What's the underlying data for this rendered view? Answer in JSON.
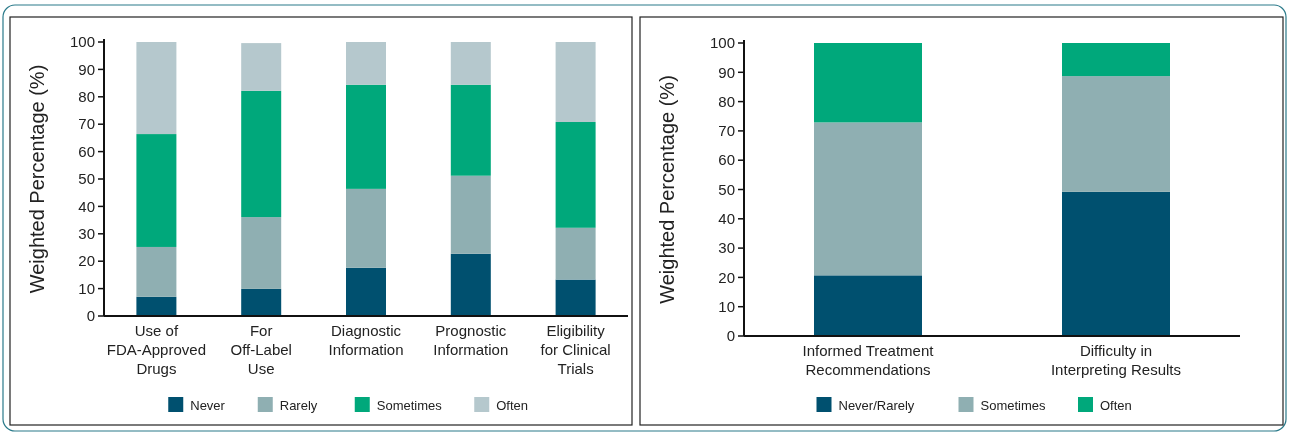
{
  "chart_data": [
    {
      "type": "bar",
      "stacked": true,
      "ylabel": "Weighted Percentage (%)",
      "categories": [
        "Use of FDA-Approved Drugs",
        "For Off-Label Use",
        "Diagnostic Information",
        "Prognostic Information",
        "Eligibility for Clinical Trials"
      ],
      "series": [
        {
          "name": "Never",
          "color": "#00506f",
          "values": [
            7,
            9.9,
            17.6,
            22.7,
            13.3
          ]
        },
        {
          "name": "Rarely",
          "color": "#8fafb2",
          "values": [
            18.2,
            26.2,
            28.8,
            28.5,
            18.9
          ]
        },
        {
          "name": "Sometimes",
          "color": "#00a87b",
          "values": [
            41.2,
            46.1,
            38,
            33.2,
            38.6
          ]
        },
        {
          "name": "Often",
          "color": "#b5c8cd",
          "values": [
            33.6,
            17.4,
            15.6,
            15.6,
            29.2
          ]
        }
      ],
      "ylim": [
        0,
        100
      ],
      "yticks": [
        0,
        10,
        20,
        30,
        40,
        50,
        60,
        70,
        80,
        90,
        100
      ],
      "legend": "bottom",
      "grid": false
    },
    {
      "type": "bar",
      "stacked": true,
      "ylabel": "Weighted Percentage (%)",
      "categories": [
        "Informed Treatment Recommendations",
        "Difficulty in Interpreting Results"
      ],
      "series": [
        {
          "name": "Never/Rarely",
          "color": "#00506f",
          "values": [
            20.7,
            49.2
          ]
        },
        {
          "name": "Sometimes",
          "color": "#8fafb2",
          "values": [
            52.2,
            39.5
          ]
        },
        {
          "name": "Often",
          "color": "#00a87b",
          "values": [
            27.1,
            11.3
          ]
        }
      ],
      "ylim": [
        0,
        100
      ],
      "yticks": [
        0,
        10,
        20,
        30,
        40,
        50,
        60,
        70,
        80,
        90,
        100
      ],
      "legend": "bottom",
      "grid": false
    }
  ]
}
